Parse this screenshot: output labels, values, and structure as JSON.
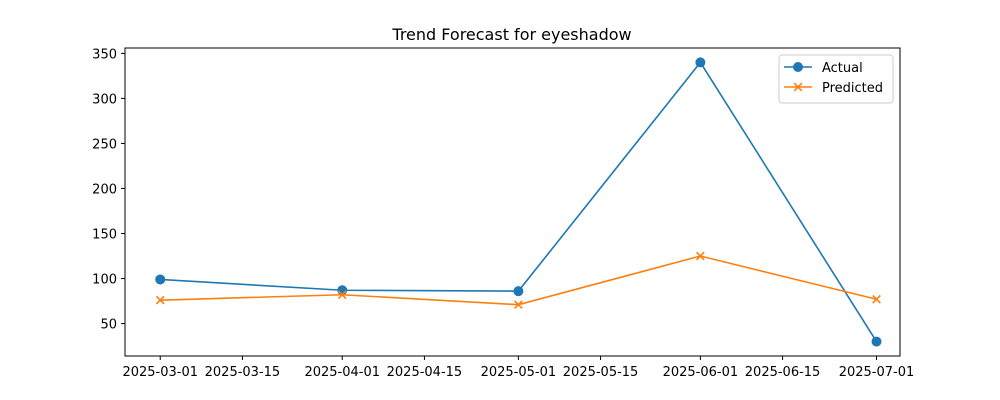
{
  "chart_data": {
    "type": "line",
    "title": "Trend Forecast for eyeshadow",
    "xlabel": "",
    "ylabel": "",
    "x": [
      "2025-03-01",
      "2025-04-01",
      "2025-05-01",
      "2025-06-01",
      "2025-07-01"
    ],
    "x_ticks": [
      "2025-03-01",
      "2025-03-15",
      "2025-04-01",
      "2025-04-15",
      "2025-05-01",
      "2025-05-15",
      "2025-06-01",
      "2025-06-15",
      "2025-07-01"
    ],
    "y_ticks": [
      50,
      100,
      150,
      200,
      250,
      300,
      350
    ],
    "xlim": [
      "2025-02-23",
      "2025-07-05"
    ],
    "ylim": [
      14,
      356
    ],
    "grid": false,
    "legend_position": "top-right",
    "series": [
      {
        "name": "Actual",
        "color": "#1f77b4",
        "marker": "circle",
        "values": [
          99,
          87,
          86,
          340,
          30
        ]
      },
      {
        "name": "Predicted",
        "color": "#ff7f0e",
        "marker": "x",
        "values": [
          76,
          82,
          71,
          125,
          77
        ]
      }
    ]
  }
}
